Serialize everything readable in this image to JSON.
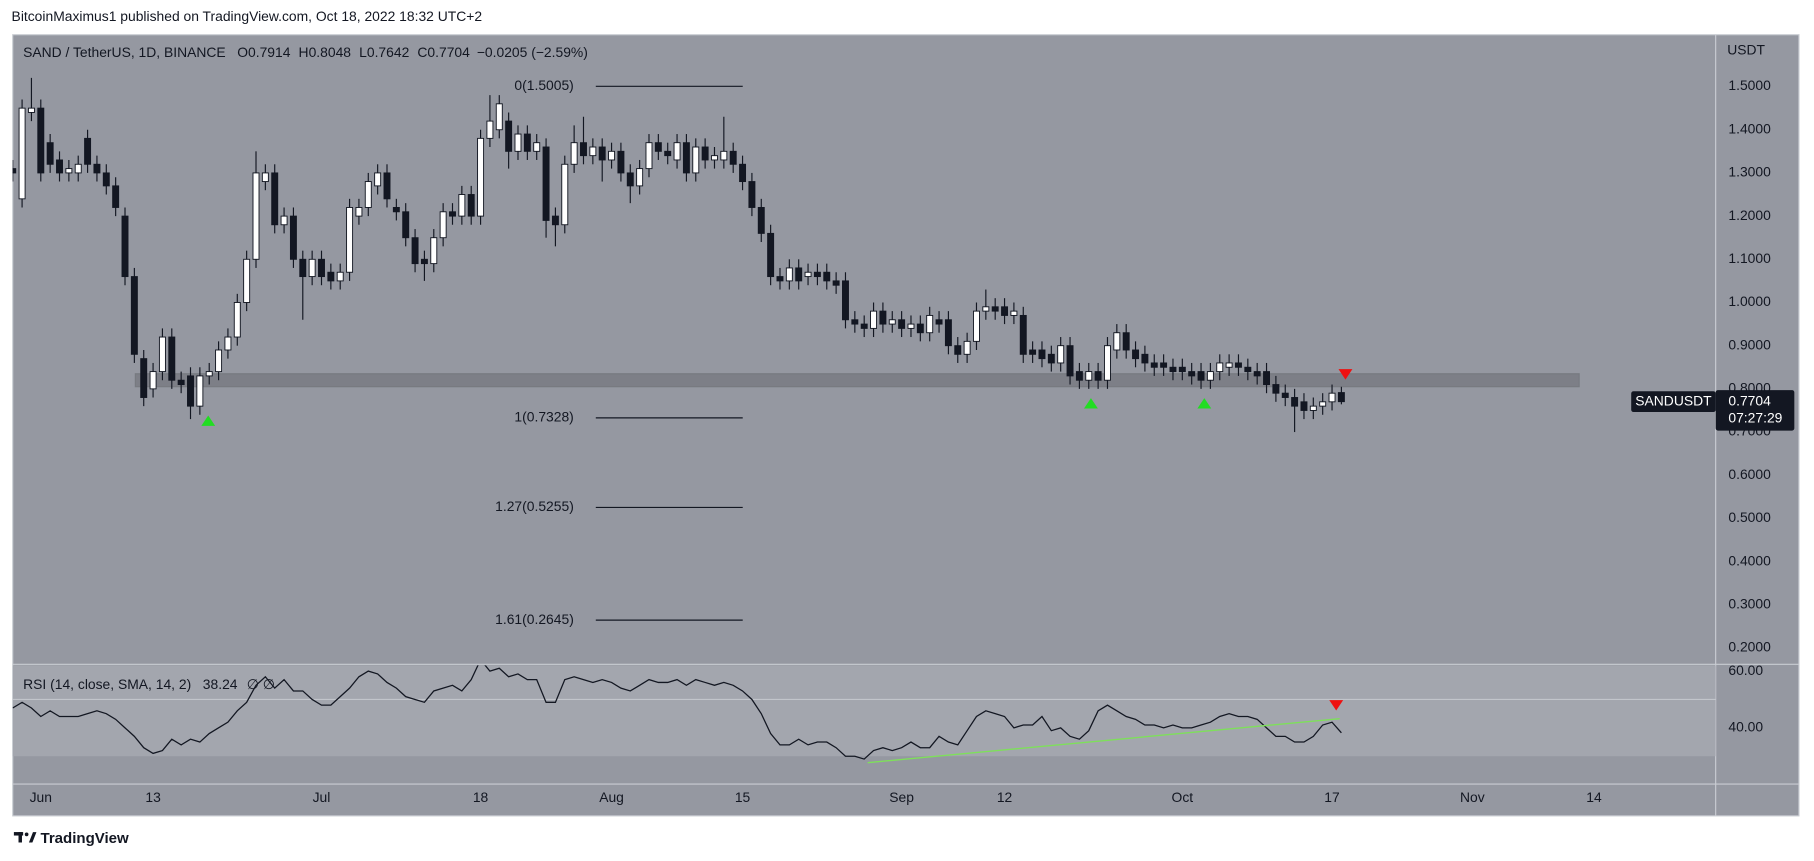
{
  "header": {
    "publisher": "BitcoinMaximus1 published on TradingView.com, Oct 18, 2022 18:32 UTC+2"
  },
  "footer": {
    "brand": "TradingView"
  },
  "chart_data": {
    "type": "candlestick",
    "title": "SAND / TetherUS, 1D, BINANCE",
    "ohlc_legend": [
      {
        "key": "O",
        "value": "0.7914"
      },
      {
        "key": "H",
        "value": "0.8048"
      },
      {
        "key": "L",
        "value": "0.7642"
      },
      {
        "key": "C",
        "value": "0.7704"
      }
    ],
    "change": "−0.0205 (−2.59%)",
    "axis_unit": "USDT",
    "symbol_label": "SANDUSDT",
    "last_price": 0.7704,
    "countdown": "07:27:29",
    "x": [
      "2022-05-29",
      "2022-05-30",
      "2022-05-31",
      "2022-06-01",
      "2022-06-02",
      "2022-06-03",
      "2022-06-04",
      "2022-06-05",
      "2022-06-06",
      "2022-06-07",
      "2022-06-08",
      "2022-06-09",
      "2022-06-10",
      "2022-06-11",
      "2022-06-12",
      "2022-06-13",
      "2022-06-14",
      "2022-06-15",
      "2022-06-16",
      "2022-06-17",
      "2022-06-18",
      "2022-06-19",
      "2022-06-20",
      "2022-06-21",
      "2022-06-22",
      "2022-06-23",
      "2022-06-24",
      "2022-06-25",
      "2022-06-26",
      "2022-06-27",
      "2022-06-28",
      "2022-06-29",
      "2022-06-30",
      "2022-07-01",
      "2022-07-02",
      "2022-07-03",
      "2022-07-04",
      "2022-07-05",
      "2022-07-06",
      "2022-07-07",
      "2022-07-08",
      "2022-07-09",
      "2022-07-10",
      "2022-07-11",
      "2022-07-12",
      "2022-07-13",
      "2022-07-14",
      "2022-07-15",
      "2022-07-16",
      "2022-07-17",
      "2022-07-18",
      "2022-07-19",
      "2022-07-20",
      "2022-07-21",
      "2022-07-22",
      "2022-07-23",
      "2022-07-24",
      "2022-07-25",
      "2022-07-26",
      "2022-07-27",
      "2022-07-28",
      "2022-07-29",
      "2022-07-30",
      "2022-07-31",
      "2022-08-01",
      "2022-08-02",
      "2022-08-03",
      "2022-08-04",
      "2022-08-05",
      "2022-08-06",
      "2022-08-07",
      "2022-08-08",
      "2022-08-09",
      "2022-08-10",
      "2022-08-11",
      "2022-08-12",
      "2022-08-13",
      "2022-08-14",
      "2022-08-15",
      "2022-08-16",
      "2022-08-17",
      "2022-08-18",
      "2022-08-19",
      "2022-08-20",
      "2022-08-21",
      "2022-08-22",
      "2022-08-23",
      "2022-08-24",
      "2022-08-25",
      "2022-08-26",
      "2022-08-27",
      "2022-08-28",
      "2022-08-29",
      "2022-08-30",
      "2022-08-31",
      "2022-09-01",
      "2022-09-02",
      "2022-09-03",
      "2022-09-04",
      "2022-09-05",
      "2022-09-06",
      "2022-09-07",
      "2022-09-08",
      "2022-09-09",
      "2022-09-10",
      "2022-09-11",
      "2022-09-12",
      "2022-09-13",
      "2022-09-14",
      "2022-09-15",
      "2022-09-16",
      "2022-09-17",
      "2022-09-18",
      "2022-09-19",
      "2022-09-20",
      "2022-09-21",
      "2022-09-22",
      "2022-09-23",
      "2022-09-24",
      "2022-09-25",
      "2022-09-26",
      "2022-09-27",
      "2022-09-28",
      "2022-09-29",
      "2022-09-30",
      "2022-10-01",
      "2022-10-02",
      "2022-10-03",
      "2022-10-04",
      "2022-10-05",
      "2022-10-06",
      "2022-10-07",
      "2022-10-08",
      "2022-10-09",
      "2022-10-10",
      "2022-10-11",
      "2022-10-12",
      "2022-10-13",
      "2022-10-14",
      "2022-10-15",
      "2022-10-16",
      "2022-10-17",
      "2022-10-18"
    ],
    "open": [
      1.31,
      1.24,
      1.44,
      1.45,
      1.37,
      1.33,
      1.3,
      1.3,
      1.38,
      1.32,
      1.3,
      1.27,
      1.2,
      1.06,
      0.87,
      0.8,
      0.84,
      0.92,
      0.82,
      0.83,
      0.76,
      0.83,
      0.84,
      0.89,
      0.92,
      1.0,
      1.1,
      1.28,
      1.3,
      1.18,
      1.2,
      1.1,
      1.06,
      1.1,
      1.07,
      1.05,
      1.07,
      1.2,
      1.22,
      1.27,
      1.3,
      1.22,
      1.21,
      1.15,
      1.1,
      1.09,
      1.15,
      1.21,
      1.2,
      1.25,
      1.2,
      1.38,
      1.4,
      1.42,
      1.35,
      1.39,
      1.35,
      1.36,
      1.2,
      1.18,
      1.32,
      1.37,
      1.34,
      1.36,
      1.33,
      1.35,
      1.3,
      1.27,
      1.31,
      1.37,
      1.35,
      1.33,
      1.37,
      1.3,
      1.36,
      1.33,
      1.33,
      1.35,
      1.32,
      1.28,
      1.22,
      1.16,
      1.06,
      1.05,
      1.08,
      1.06,
      1.07,
      1.07,
      1.05,
      1.05,
      0.96,
      0.95,
      0.94,
      0.98,
      0.95,
      0.96,
      0.94,
      0.95,
      0.93,
      0.96,
      0.96,
      0.9,
      0.88,
      0.91,
      0.98,
      0.99,
      0.99,
      0.97,
      0.97,
      0.89,
      0.89,
      0.88,
      0.86,
      0.9,
      0.84,
      0.82,
      0.84,
      0.82,
      0.89,
      0.93,
      0.89,
      0.88,
      0.86,
      0.86,
      0.85,
      0.85,
      0.84,
      0.84,
      0.82,
      0.84,
      0.85,
      0.86,
      0.85,
      0.84,
      0.84,
      0.81,
      0.79,
      0.78,
      0.77,
      0.75,
      0.76,
      0.77,
      0.7914
    ],
    "high": [
      1.33,
      1.47,
      1.52,
      1.47,
      1.39,
      1.35,
      1.33,
      1.34,
      1.4,
      1.34,
      1.32,
      1.29,
      1.22,
      1.08,
      0.89,
      0.86,
      0.94,
      0.94,
      0.84,
      0.85,
      0.85,
      0.86,
      0.91,
      0.94,
      1.02,
      1.12,
      1.35,
      1.32,
      1.32,
      1.22,
      1.22,
      1.12,
      1.12,
      1.12,
      1.09,
      1.09,
      1.24,
      1.24,
      1.3,
      1.32,
      1.32,
      1.24,
      1.23,
      1.17,
      1.12,
      1.17,
      1.23,
      1.23,
      1.27,
      1.27,
      1.4,
      1.48,
      1.48,
      1.44,
      1.41,
      1.41,
      1.39,
      1.38,
      1.22,
      1.34,
      1.41,
      1.43,
      1.38,
      1.38,
      1.37,
      1.37,
      1.32,
      1.33,
      1.39,
      1.39,
      1.37,
      1.39,
      1.39,
      1.38,
      1.38,
      1.36,
      1.43,
      1.37,
      1.34,
      1.3,
      1.24,
      1.18,
      1.08,
      1.1,
      1.1,
      1.09,
      1.09,
      1.09,
      1.07,
      1.07,
      0.98,
      0.97,
      1.0,
      1.0,
      0.98,
      0.98,
      0.97,
      0.97,
      0.99,
      0.98,
      0.98,
      0.92,
      0.93,
      1.0,
      1.03,
      1.01,
      1.01,
      1.0,
      0.99,
      0.91,
      0.91,
      0.9,
      0.92,
      0.92,
      0.86,
      0.86,
      0.86,
      0.92,
      0.95,
      0.95,
      0.91,
      0.9,
      0.88,
      0.88,
      0.87,
      0.87,
      0.86,
      0.86,
      0.86,
      0.88,
      0.88,
      0.88,
      0.87,
      0.86,
      0.86,
      0.83,
      0.81,
      0.8,
      0.79,
      0.78,
      0.79,
      0.81,
      0.8048
    ],
    "low": [
      1.28,
      1.22,
      1.42,
      1.28,
      1.3,
      1.28,
      1.28,
      1.28,
      1.3,
      1.28,
      1.25,
      1.2,
      1.04,
      0.86,
      0.76,
      0.78,
      0.82,
      0.8,
      0.79,
      0.73,
      0.74,
      0.81,
      0.82,
      0.87,
      0.9,
      0.98,
      1.08,
      1.26,
      1.16,
      1.16,
      1.08,
      0.96,
      1.04,
      1.04,
      1.03,
      1.03,
      1.05,
      1.18,
      1.2,
      1.25,
      1.22,
      1.19,
      1.13,
      1.07,
      1.05,
      1.07,
      1.13,
      1.18,
      1.18,
      1.18,
      1.18,
      1.36,
      1.38,
      1.31,
      1.33,
      1.33,
      1.33,
      1.15,
      1.13,
      1.16,
      1.3,
      1.32,
      1.32,
      1.28,
      1.31,
      1.28,
      1.23,
      1.25,
      1.29,
      1.33,
      1.32,
      1.31,
      1.28,
      1.28,
      1.31,
      1.31,
      1.31,
      1.3,
      1.26,
      1.2,
      1.14,
      1.04,
      1.03,
      1.03,
      1.03,
      1.04,
      1.04,
      1.03,
      1.02,
      0.94,
      0.93,
      0.92,
      0.92,
      0.93,
      0.93,
      0.92,
      0.92,
      0.91,
      0.91,
      0.93,
      0.88,
      0.86,
      0.86,
      0.89,
      0.96,
      0.96,
      0.95,
      0.95,
      0.86,
      0.86,
      0.85,
      0.84,
      0.84,
      0.81,
      0.8,
      0.8,
      0.8,
      0.8,
      0.87,
      0.87,
      0.85,
      0.84,
      0.83,
      0.83,
      0.82,
      0.82,
      0.81,
      0.8,
      0.8,
      0.82,
      0.83,
      0.83,
      0.82,
      0.81,
      0.79,
      0.77,
      0.76,
      0.7,
      0.73,
      0.73,
      0.74,
      0.75,
      0.7642
    ],
    "close": [
      1.3,
      1.45,
      1.45,
      1.3,
      1.32,
      1.3,
      1.31,
      1.32,
      1.32,
      1.3,
      1.27,
      1.22,
      1.06,
      0.88,
      0.78,
      0.84,
      0.92,
      0.82,
      0.81,
      0.76,
      0.83,
      0.84,
      0.89,
      0.92,
      1.0,
      1.1,
      1.3,
      1.3,
      1.18,
      1.2,
      1.1,
      1.06,
      1.1,
      1.06,
      1.05,
      1.07,
      1.22,
      1.22,
      1.28,
      1.3,
      1.24,
      1.21,
      1.15,
      1.09,
      1.09,
      1.15,
      1.21,
      1.2,
      1.25,
      1.2,
      1.38,
      1.42,
      1.46,
      1.35,
      1.39,
      1.35,
      1.37,
      1.19,
      1.18,
      1.32,
      1.37,
      1.34,
      1.36,
      1.33,
      1.35,
      1.3,
      1.27,
      1.31,
      1.37,
      1.35,
      1.34,
      1.37,
      1.3,
      1.36,
      1.33,
      1.34,
      1.35,
      1.32,
      1.28,
      1.22,
      1.16,
      1.06,
      1.05,
      1.08,
      1.05,
      1.07,
      1.06,
      1.05,
      1.04,
      0.96,
      0.95,
      0.94,
      0.98,
      0.95,
      0.96,
      0.94,
      0.95,
      0.93,
      0.97,
      0.95,
      0.9,
      0.88,
      0.91,
      0.98,
      0.99,
      0.98,
      0.97,
      0.98,
      0.88,
      0.88,
      0.87,
      0.86,
      0.9,
      0.83,
      0.82,
      0.84,
      0.82,
      0.9,
      0.93,
      0.89,
      0.87,
      0.86,
      0.85,
      0.85,
      0.84,
      0.84,
      0.83,
      0.82,
      0.84,
      0.86,
      0.86,
      0.85,
      0.84,
      0.83,
      0.81,
      0.79,
      0.78,
      0.76,
      0.75,
      0.76,
      0.77,
      0.79,
      0.7704
    ],
    "xlim": [
      "2022-05-29",
      "2022-11-27"
    ],
    "xticks": [
      {
        "value": "2022-06-01",
        "label": "Jun"
      },
      {
        "value": "2022-06-13",
        "label": "13"
      },
      {
        "value": "2022-07-01",
        "label": "Jul"
      },
      {
        "value": "2022-07-18",
        "label": "18"
      },
      {
        "value": "2022-08-01",
        "label": "Aug"
      },
      {
        "value": "2022-08-15",
        "label": "15"
      },
      {
        "value": "2022-09-01",
        "label": "Sep"
      },
      {
        "value": "2022-09-12",
        "label": "12"
      },
      {
        "value": "2022-10-01",
        "label": "Oct"
      },
      {
        "value": "2022-10-17",
        "label": "17"
      },
      {
        "value": "2022-11-01",
        "label": "Nov"
      },
      {
        "value": "2022-11-14",
        "label": "14"
      }
    ],
    "ylim": [
      0.165,
      1.62
    ],
    "yticks": [
      {
        "value": 1.5,
        "label": "1.5000"
      },
      {
        "value": 1.4,
        "label": "1.4000"
      },
      {
        "value": 1.3,
        "label": "1.3000"
      },
      {
        "value": 1.2,
        "label": "1.2000"
      },
      {
        "value": 1.1,
        "label": "1.1000"
      },
      {
        "value": 1.0,
        "label": "1.0000"
      },
      {
        "value": 0.9,
        "label": "0.9000"
      },
      {
        "value": 0.8,
        "label": "0.8000"
      },
      {
        "value": 0.7,
        "label": "0.7000"
      },
      {
        "value": 0.6,
        "label": "0.6000"
      },
      {
        "value": 0.5,
        "label": "0.5000"
      },
      {
        "value": 0.4,
        "label": "0.4000"
      },
      {
        "value": 0.3,
        "label": "0.3000"
      },
      {
        "value": 0.2,
        "label": "0.2000"
      }
    ],
    "up_color": "#ffffff",
    "down_color": "#131722",
    "zone": {
      "low": 0.805,
      "high": 0.835
    },
    "fib_levels": [
      {
        "label": "0(1.5005)",
        "value": 1.5005
      },
      {
        "label": "1(0.7328)",
        "value": 0.7328
      },
      {
        "label": "1.27(0.5255)",
        "value": 0.5255
      },
      {
        "label": "1.61(0.2645)",
        "value": 0.2645
      }
    ],
    "rsi": {
      "type": "line",
      "title": "RSI (14, close, SMA, 14, 2)",
      "last_value": 38.24,
      "status": "∅  ∅",
      "color": "#131722",
      "values": [
        47,
        49,
        47,
        44,
        46,
        44,
        44,
        44,
        45,
        46,
        45,
        43,
        40,
        37,
        33,
        31,
        32,
        36,
        34,
        36,
        35,
        38,
        40,
        42,
        46,
        49,
        55,
        58,
        54,
        57,
        53,
        53,
        50,
        48,
        48,
        51,
        54,
        58,
        60,
        59,
        56,
        54,
        51,
        50,
        49,
        53,
        54,
        55,
        53,
        57,
        64,
        60,
        61,
        58,
        59,
        57,
        57,
        49,
        49,
        57,
        58,
        57,
        56,
        57,
        56,
        54,
        53,
        55,
        57,
        56,
        56,
        57,
        55,
        57,
        56,
        55,
        56,
        55,
        53,
        50,
        45,
        38,
        34,
        34,
        36,
        34,
        35,
        35,
        33,
        30,
        30,
        29,
        32,
        33,
        32,
        33,
        35,
        33,
        33,
        37,
        35,
        34,
        39,
        44,
        46,
        45,
        44,
        40,
        41,
        41,
        44,
        39,
        40,
        37,
        36,
        39,
        46,
        48,
        46,
        44,
        43,
        41,
        41,
        40,
        41,
        40,
        40,
        41,
        42,
        44,
        45,
        44,
        44,
        43,
        40,
        37,
        37,
        35,
        35,
        37,
        41,
        42,
        38.24
      ],
      "ylim": [
        20.4,
        62
      ],
      "yticks": [
        {
          "value": 60,
          "label": "60.00"
        },
        {
          "value": 40,
          "label": "40.00"
        }
      ],
      "band": [
        30,
        70
      ],
      "midline": 50
    }
  }
}
